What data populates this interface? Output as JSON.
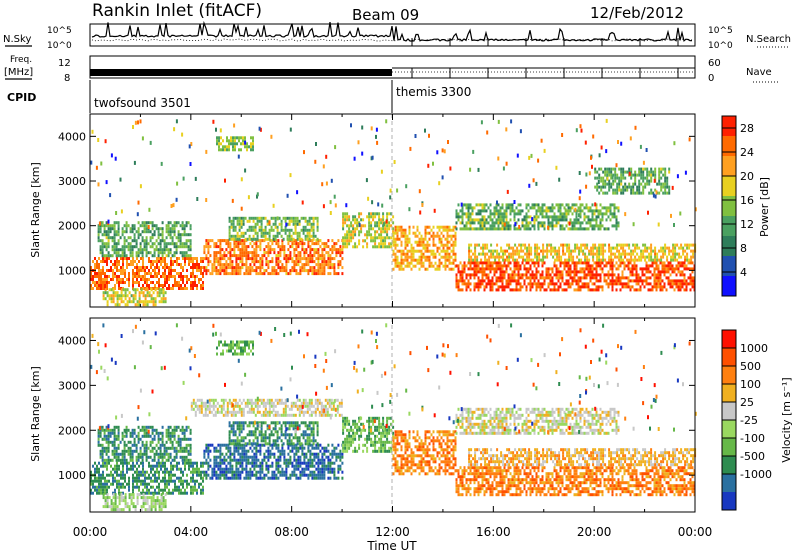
{
  "header": {
    "site": "Rankin Inlet (fitACF)",
    "beam": "Beam 09",
    "date": "12/Feb/2012"
  },
  "strips": {
    "nsky_label": "N.Sky",
    "nsearch_label": "N.Search",
    "freq_label_1": "Freq.",
    "freq_label_2": "[MHz]",
    "nave_label": "Nave",
    "cpid_label": "CPID",
    "noise_left_top": "10^5",
    "noise_left_bottom": "10^0",
    "noise_right_top": "10^5",
    "noise_right_bottom": "10^0",
    "freq_left_top": "12",
    "freq_left_bottom": "8",
    "nave_right_top": "60",
    "nave_right_bottom": "0",
    "cpid_1": "twofsound 3501",
    "cpid_2": "themis 3300",
    "colors": {
      "trace": "#000000",
      "background": "#ffffff",
      "marker": "#b0b0b0"
    }
  },
  "panels": {
    "power_ylabel": "Slant Range [km]",
    "velocity_ylabel": "Slant Range [km]",
    "power_cbar_label": "Power [dB]",
    "velocity_cbar_label": "Velocity [m s⁻¹]",
    "xlabel": "Time UT"
  },
  "chart_data": [
    {
      "type": "heatmap",
      "name_ref": "power",
      "title": "",
      "xlabel": "Time UT",
      "ylabel": "Slant Range [km]",
      "x_ticks": [
        "00:00",
        "04:00",
        "08:00",
        "12:00",
        "16:00",
        "20:00",
        "00:00"
      ],
      "xlim_hours": [
        0,
        24
      ],
      "y_ticks": [
        1000,
        2000,
        3000,
        4000
      ],
      "ylim": [
        180,
        4500
      ],
      "colorbar": {
        "label": "Power [dB]",
        "ticks": [
          4,
          8,
          12,
          16,
          20,
          24,
          28
        ],
        "range": [
          0,
          30
        ],
        "colors": [
          "#1010ff",
          "#2050b0",
          "#2e7d5a",
          "#4aa060",
          "#80c040",
          "#e8d020",
          "#ffa020",
          "#ff6a00",
          "#ff2000"
        ]
      },
      "vertical_marker_hour": 12,
      "bands": [
        {
          "t0": 0.0,
          "t1": 4.5,
          "r0": 600,
          "r1": 1300,
          "level": 26
        },
        {
          "t0": 0.3,
          "t1": 4.0,
          "r0": 1300,
          "r1": 2100,
          "level": 12
        },
        {
          "t0": 4.5,
          "t1": 10.0,
          "r0": 900,
          "r1": 1700,
          "level": 25
        },
        {
          "t0": 5.5,
          "t1": 9.0,
          "r0": 1700,
          "r1": 2200,
          "level": 14
        },
        {
          "t0": 10.0,
          "t1": 12.0,
          "r0": 1500,
          "r1": 2300,
          "level": 17
        },
        {
          "t0": 12.0,
          "t1": 14.5,
          "r0": 1000,
          "r1": 2000,
          "level": 22
        },
        {
          "t0": 14.5,
          "t1": 24.0,
          "r0": 550,
          "r1": 1200,
          "level": 28
        },
        {
          "t0": 15.0,
          "t1": 24.0,
          "r0": 1200,
          "r1": 1600,
          "level": 20
        },
        {
          "t0": 14.5,
          "t1": 21.0,
          "r0": 1900,
          "r1": 2500,
          "level": 13
        },
        {
          "t0": 0.5,
          "t1": 3.0,
          "r0": 250,
          "r1": 600,
          "level": 18
        },
        {
          "t0": 5.0,
          "t1": 6.5,
          "r0": 3700,
          "r1": 4000,
          "level": 15
        },
        {
          "t0": 20.0,
          "t1": 23.0,
          "r0": 2700,
          "r1": 3300,
          "level": 12
        }
      ]
    },
    {
      "type": "heatmap",
      "name_ref": "velocity",
      "title": "",
      "xlabel": "Time UT",
      "ylabel": "Slant Range [km]",
      "x_ticks": [
        "00:00",
        "04:00",
        "08:00",
        "12:00",
        "16:00",
        "20:00",
        "00:00"
      ],
      "xlim_hours": [
        0,
        24
      ],
      "y_ticks": [
        1000,
        2000,
        3000,
        4000
      ],
      "ylim": [
        180,
        4500
      ],
      "colorbar": {
        "label": "Velocity [m s⁻¹]",
        "ticks": [
          "1000",
          "500",
          "100",
          "25",
          "-25",
          "-100",
          "-500",
          "-1000"
        ],
        "colors": [
          "#1838c0",
          "#2a70a0",
          "#2e8c50",
          "#66b848",
          "#9ad860",
          "#c8c8c8",
          "#f0b020",
          "#ff8010",
          "#ff5000",
          "#ff1000"
        ]
      },
      "vertical_marker_hour": 12,
      "bands": [
        {
          "t0": 0.0,
          "t1": 4.5,
          "r0": 600,
          "r1": 1300,
          "level": 2
        },
        {
          "t0": 0.3,
          "t1": 4.0,
          "r0": 1300,
          "r1": 2100,
          "level": 2
        },
        {
          "t0": 4.5,
          "t1": 10.0,
          "r0": 900,
          "r1": 1700,
          "level": 1
        },
        {
          "t0": 5.5,
          "t1": 9.0,
          "r0": 1700,
          "r1": 2200,
          "level": 2
        },
        {
          "t0": 10.0,
          "t1": 12.0,
          "r0": 1500,
          "r1": 2300,
          "level": 3
        },
        {
          "t0": 12.0,
          "t1": 14.5,
          "r0": 1000,
          "r1": 2000,
          "level": 7
        },
        {
          "t0": 14.5,
          "t1": 24.0,
          "r0": 550,
          "r1": 1200,
          "level": 7
        },
        {
          "t0": 15.0,
          "t1": 24.0,
          "r0": 1200,
          "r1": 1600,
          "level": 6
        },
        {
          "t0": 14.5,
          "t1": 21.0,
          "r0": 1900,
          "r1": 2500,
          "level": 5
        },
        {
          "t0": 4.0,
          "t1": 10.0,
          "r0": 2300,
          "r1": 2700,
          "level": 5
        },
        {
          "t0": 0.5,
          "t1": 3.0,
          "r0": 250,
          "r1": 600,
          "level": 4
        },
        {
          "t0": 5.0,
          "t1": 6.5,
          "r0": 3700,
          "r1": 4000,
          "level": 3
        }
      ]
    }
  ]
}
